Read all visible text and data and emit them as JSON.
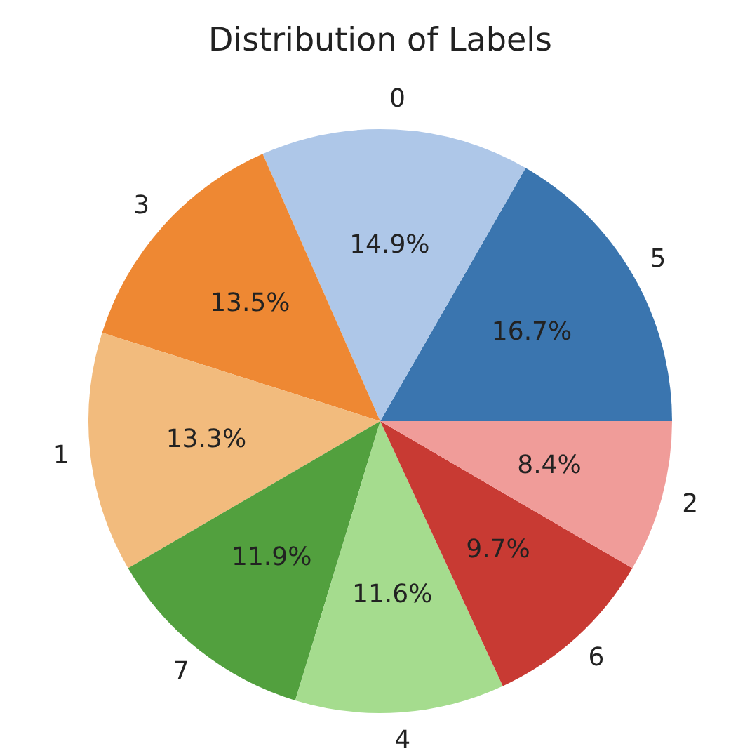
{
  "chart_data": {
    "type": "pie",
    "title": "Distribution of Labels",
    "categories": [
      "5",
      "0",
      "3",
      "1",
      "7",
      "4",
      "6",
      "2"
    ],
    "values": [
      16.7,
      14.9,
      13.5,
      13.3,
      11.9,
      11.6,
      9.7,
      8.4
    ],
    "value_labels": [
      "16.7%",
      "14.9%",
      "13.5%",
      "13.3%",
      "11.9%",
      "11.6%",
      "9.7%",
      "8.4%"
    ],
    "colors": [
      "#3a75af",
      "#aec7e8",
      "#ee8833",
      "#f2bb7d",
      "#52a03e",
      "#a5dc8e",
      "#c83a33",
      "#f09c99"
    ],
    "legend": false
  }
}
